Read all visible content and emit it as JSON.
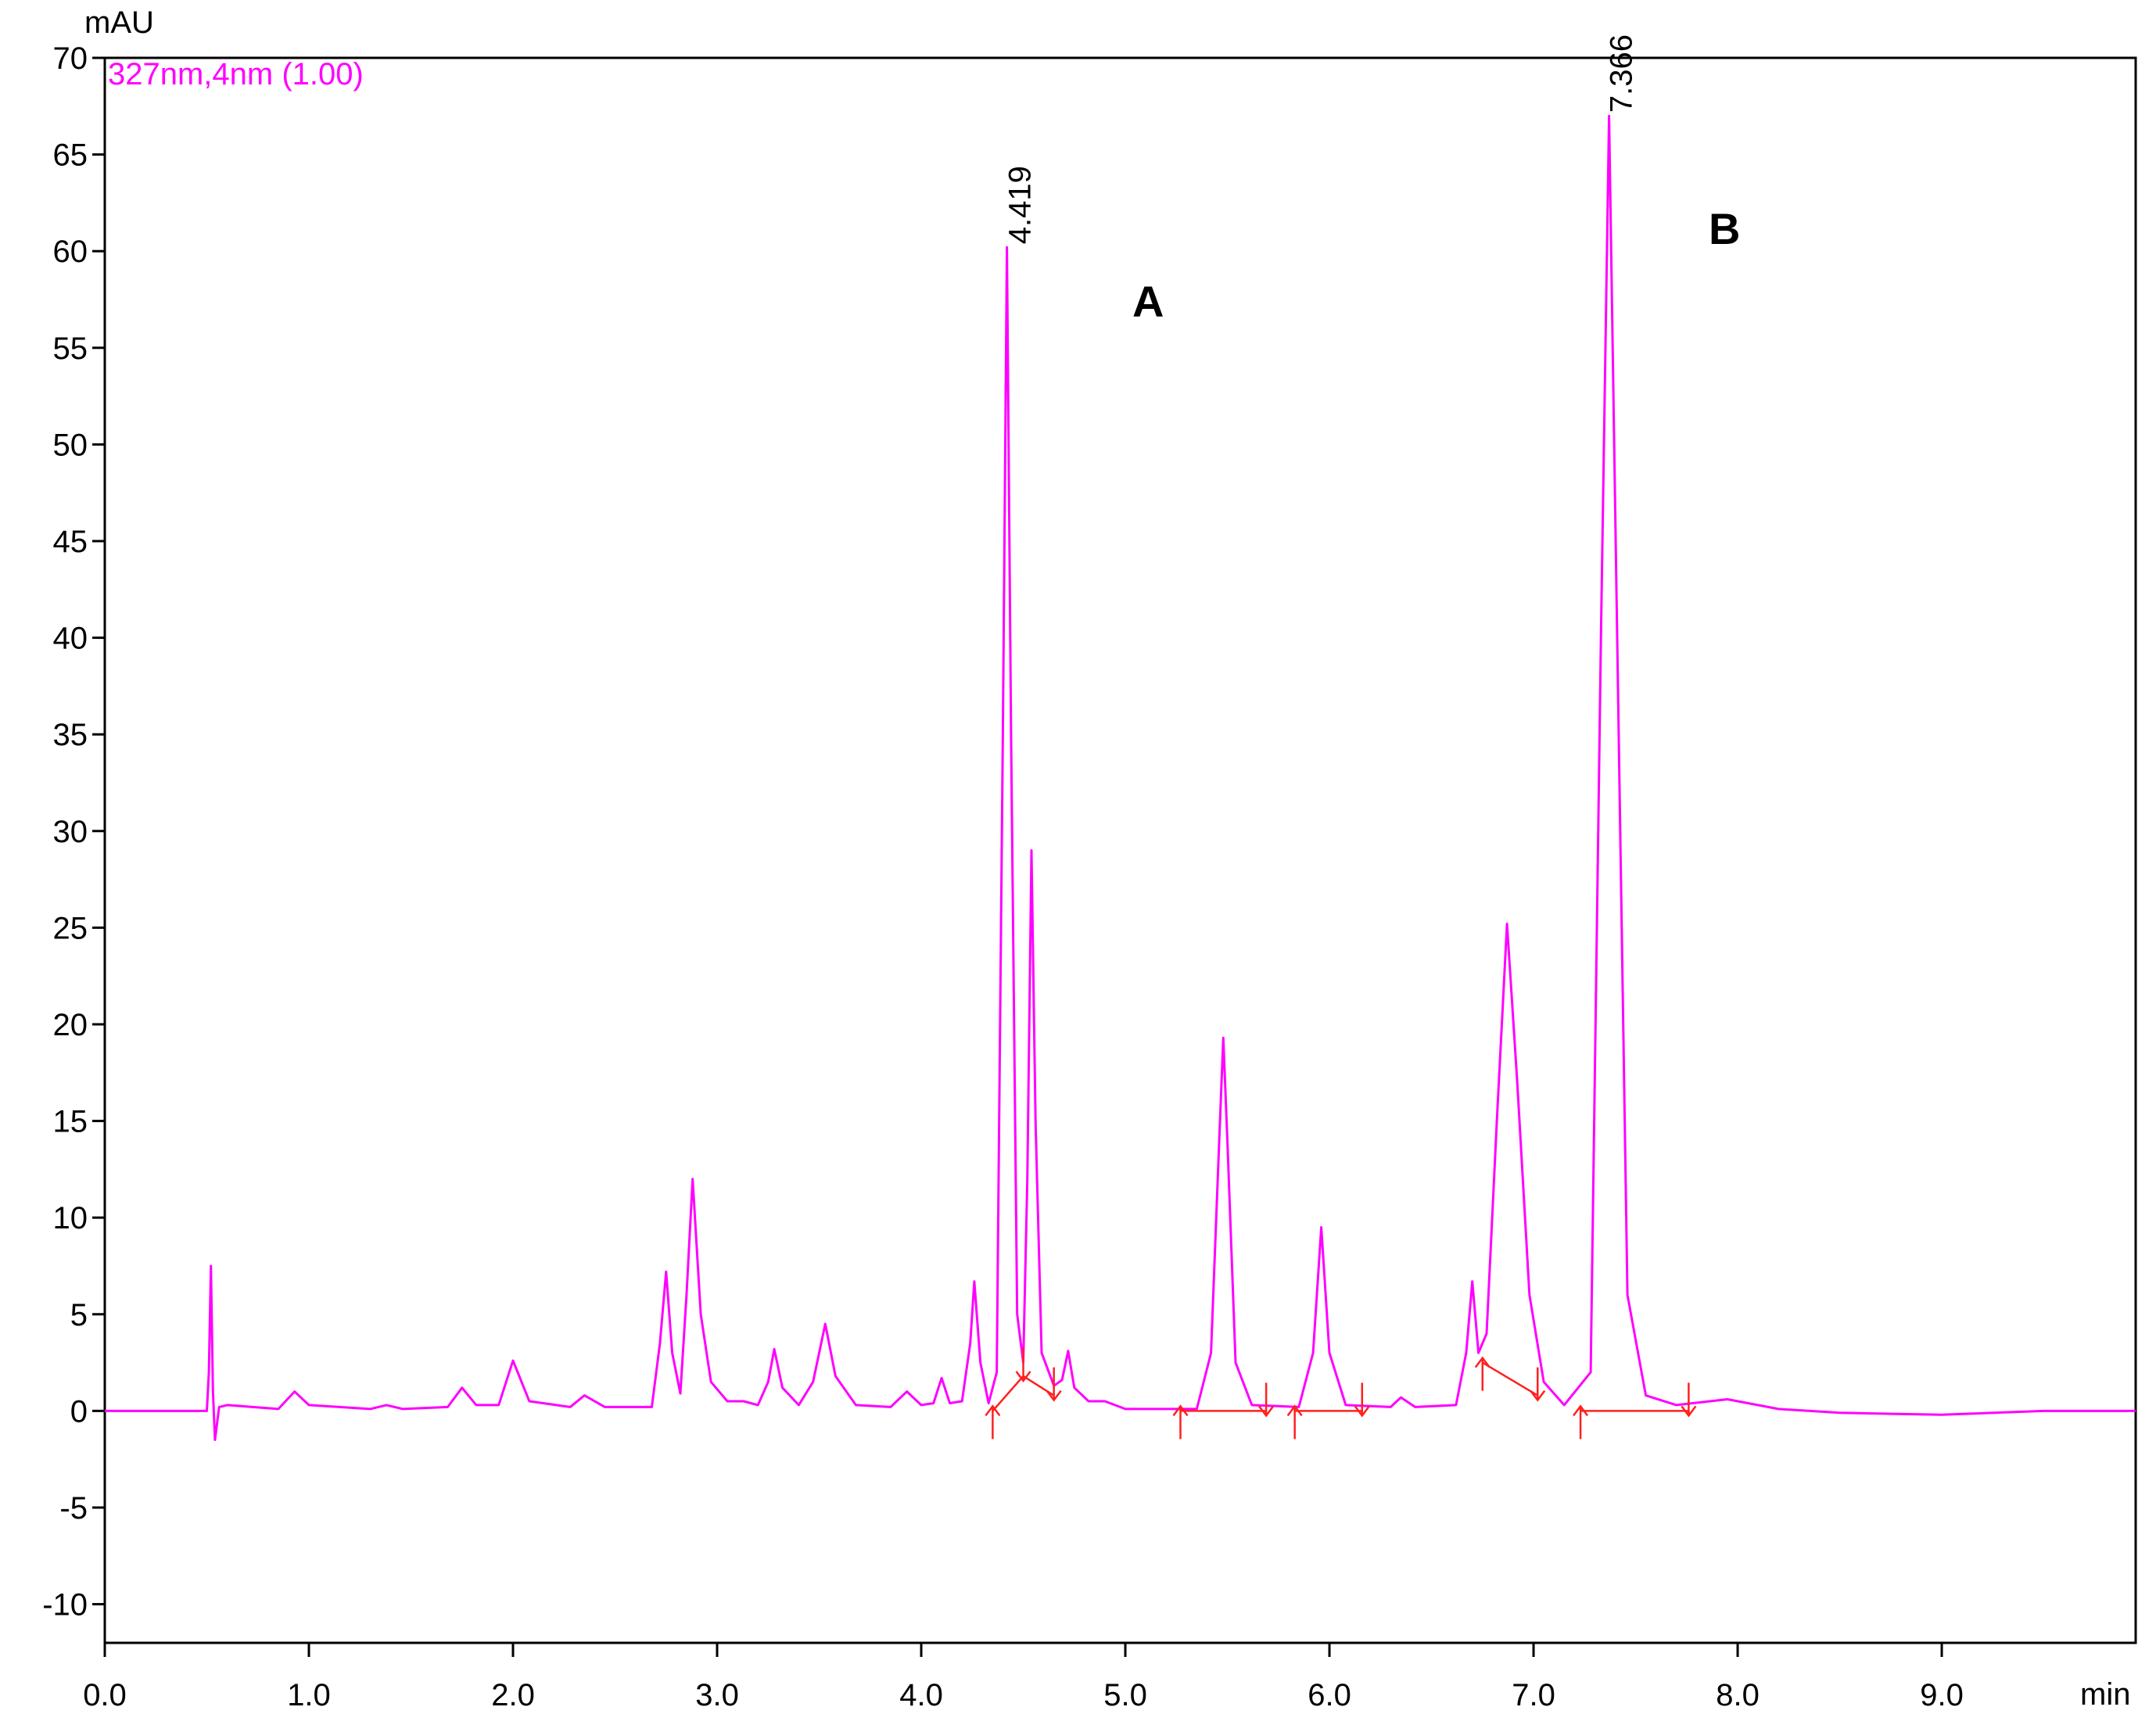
{
  "chart_data": {
    "type": "line",
    "y_label": "mAU",
    "x_label": "min",
    "xlim": [
      0,
      9.95
    ],
    "ylim": [
      -12,
      70
    ],
    "xticks": [
      {
        "value": 0,
        "label": "0.0"
      },
      {
        "value": 1,
        "label": "1.0"
      },
      {
        "value": 2,
        "label": "2.0"
      },
      {
        "value": 3,
        "label": "3.0"
      },
      {
        "value": 4,
        "label": "4.0"
      },
      {
        "value": 5,
        "label": "5.0"
      },
      {
        "value": 6,
        "label": "6.0"
      },
      {
        "value": 7,
        "label": "7.0"
      },
      {
        "value": 8,
        "label": "8.0"
      },
      {
        "value": 9,
        "label": "9.0"
      }
    ],
    "yticks": [
      -10,
      -5,
      0,
      5,
      10,
      15,
      20,
      25,
      30,
      35,
      40,
      45,
      50,
      55,
      60,
      65,
      70
    ],
    "x": [
      0,
      0.3,
      0.5,
      0.51,
      0.52,
      0.53,
      0.54,
      0.56,
      0.6,
      0.85,
      0.93,
      1.0,
      1.3,
      1.38,
      1.46,
      1.68,
      1.75,
      1.82,
      1.93,
      2.0,
      2.08,
      2.28,
      2.35,
      2.45,
      2.68,
      2.72,
      2.75,
      2.78,
      2.82,
      2.85,
      2.88,
      2.92,
      2.97,
      3.05,
      3.13,
      3.2,
      3.25,
      3.28,
      3.32,
      3.4,
      3.47,
      3.53,
      3.58,
      3.68,
      3.85,
      3.93,
      4.0,
      4.06,
      4.1,
      4.14,
      4.2,
      4.24,
      4.26,
      4.29,
      4.33,
      4.37,
      4.4,
      4.42,
      4.44,
      4.47,
      4.5,
      4.52,
      4.54,
      4.56,
      4.59,
      4.65,
      4.69,
      4.72,
      4.75,
      4.82,
      4.9,
      5.0,
      5.35,
      5.42,
      5.46,
      5.48,
      5.5,
      5.54,
      5.62,
      5.85,
      5.92,
      5.96,
      6.0,
      6.08,
      6.3,
      6.35,
      6.42,
      6.62,
      6.67,
      6.7,
      6.73,
      6.77,
      6.82,
      6.87,
      6.92,
      6.98,
      7.05,
      7.15,
      7.28,
      7.33,
      7.37,
      7.41,
      7.46,
      7.55,
      7.7,
      7.95,
      8.2,
      8.5,
      9.0,
      9.5,
      9.95
    ],
    "series": [
      {
        "name": "327nm,4nm (1.00)",
        "color": "#ff00ff",
        "values": [
          0,
          0,
          0,
          2,
          7.5,
          1,
          -1.5,
          0.2,
          0.3,
          0.1,
          1.0,
          0.3,
          0.1,
          0.3,
          0.1,
          0.2,
          1.2,
          0.3,
          0.3,
          2.6,
          0.5,
          0.2,
          0.8,
          0.2,
          0.2,
          3.5,
          7.2,
          3.0,
          0.9,
          6,
          12,
          5,
          1.5,
          0.5,
          0.5,
          0.3,
          1.5,
          3.2,
          1.2,
          0.3,
          1.5,
          4.5,
          1.8,
          0.3,
          0.2,
          1.0,
          0.3,
          0.4,
          1.7,
          0.4,
          0.5,
          3.5,
          6.7,
          2.5,
          0.4,
          2,
          35,
          60.2,
          35,
          5,
          2.5,
          12,
          29,
          15,
          3,
          1.3,
          1.6,
          3.1,
          1.2,
          0.5,
          0.5,
          0.1,
          0.1,
          3,
          14,
          19.3,
          14,
          2.5,
          0.3,
          0.2,
          3,
          9.5,
          3,
          0.3,
          0.2,
          0.7,
          0.2,
          0.3,
          3,
          6.7,
          3,
          4,
          15,
          25.2,
          17,
          6,
          1.5,
          0.3,
          2,
          40,
          67,
          40,
          6,
          0.8,
          0.3,
          0.6,
          0.1,
          -0.1,
          -0.2,
          0,
          0
        ]
      }
    ],
    "baseline_color": "#ff2020",
    "baselines": [
      {
        "x": [
          4.35,
          4.5,
          4.65
        ],
        "values": [
          0,
          1.8,
          0.8
        ]
      },
      {
        "x": [
          5.27,
          5.69
        ],
        "values": [
          0,
          0
        ]
      },
      {
        "x": [
          5.83,
          6.16
        ],
        "values": [
          0,
          0
        ]
      },
      {
        "x": [
          6.75,
          7.02
        ],
        "values": [
          2.5,
          0.8
        ]
      },
      {
        "x": [
          7.23,
          7.76
        ],
        "values": [
          0,
          0
        ]
      }
    ],
    "peak_labels": [
      4.419,
      7.366
    ],
    "annotations": [
      "A",
      "B"
    ]
  }
}
